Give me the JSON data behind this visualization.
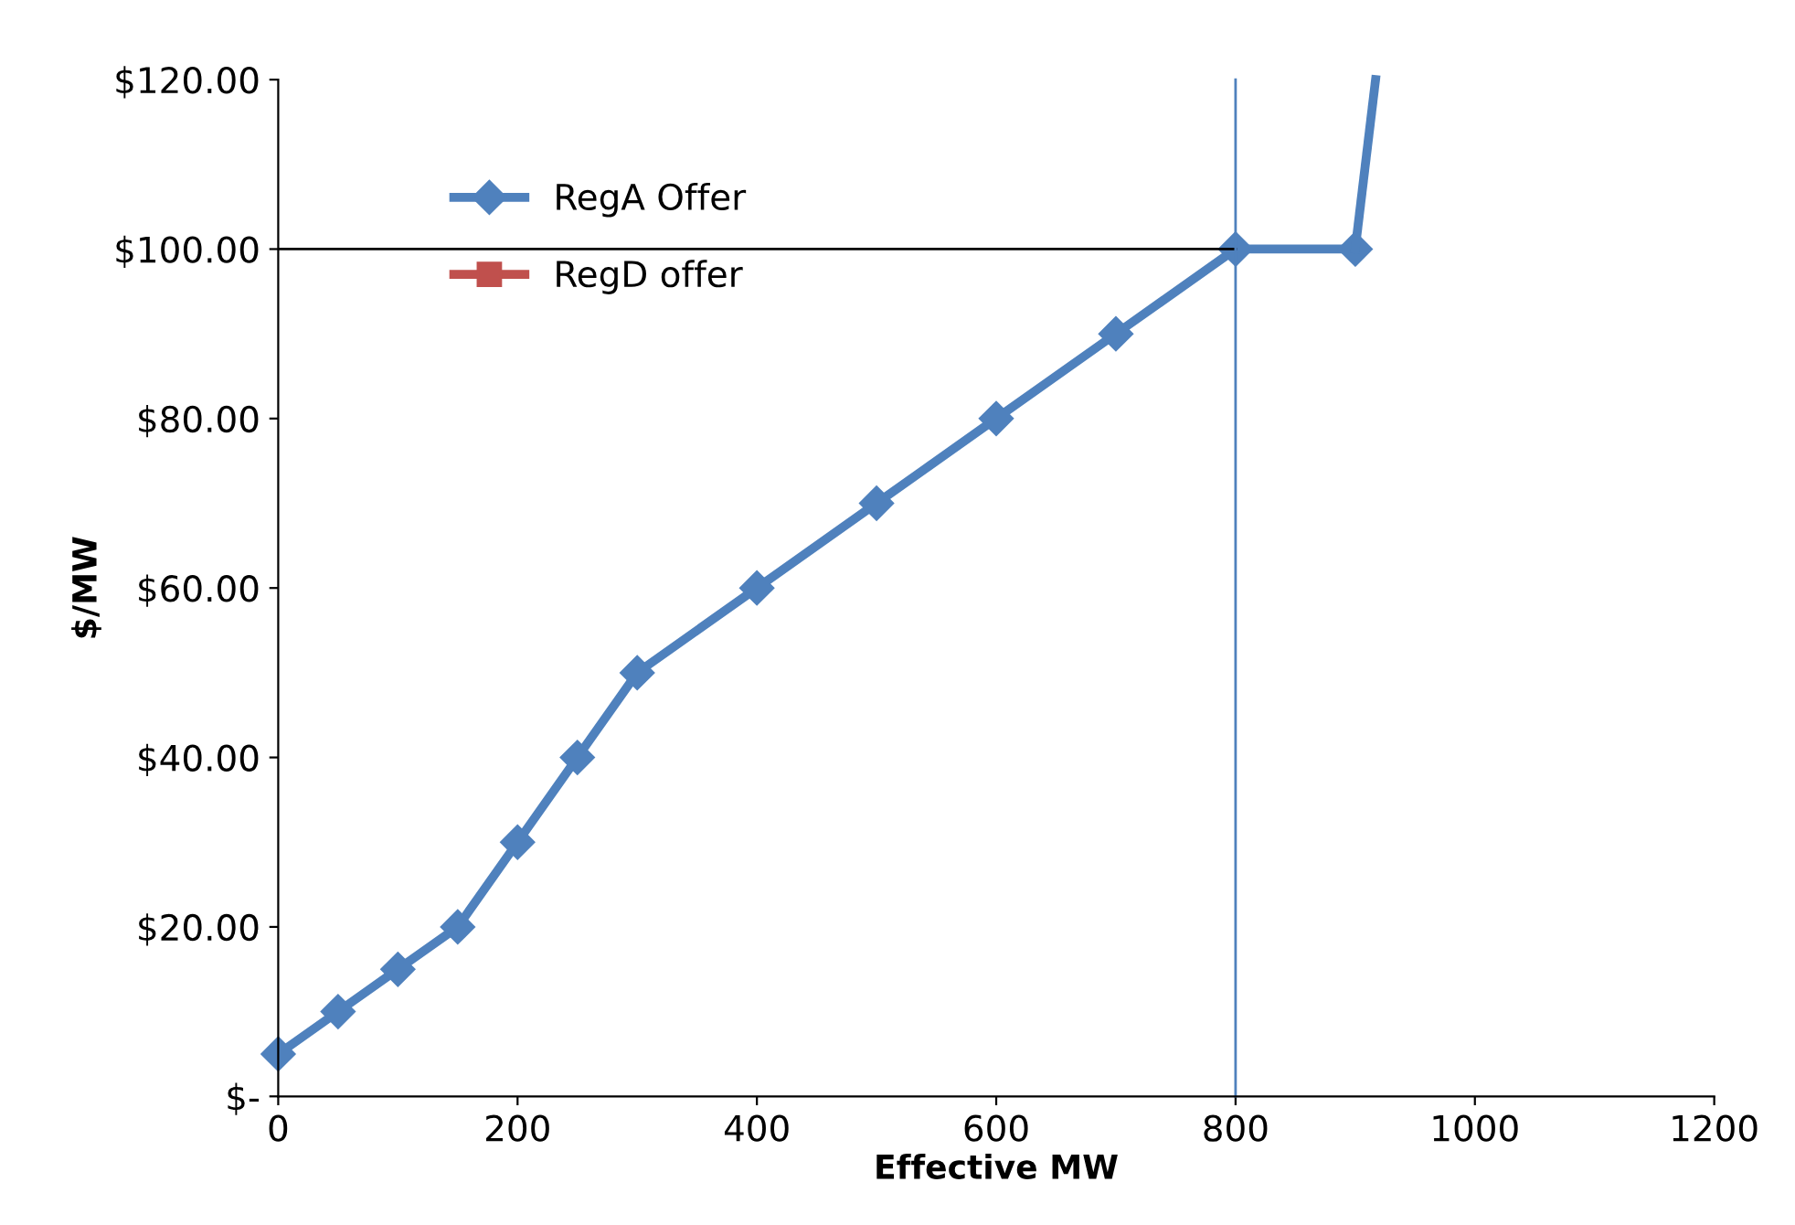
{
  "chart_data": {
    "type": "line",
    "xlabel": "Effective MW",
    "ylabel": "$/MW",
    "xlim": [
      0,
      1200
    ],
    "xticks": [
      0,
      200,
      400,
      600,
      800,
      1000,
      1200
    ],
    "ylim": [
      0,
      120
    ],
    "yticks": [
      {
        "value": 0,
        "label": "$-"
      },
      {
        "value": 20,
        "label": "$20.00"
      },
      {
        "value": 40,
        "label": "$40.00"
      },
      {
        "value": 60,
        "label": "$60.00"
      },
      {
        "value": 80,
        "label": "$80.00"
      },
      {
        "value": 100,
        "label": "$100.00"
      },
      {
        "value": 120,
        "label": "$120.00"
      }
    ],
    "grid": false,
    "legend": "top left",
    "series": [
      {
        "name": "RegA Offer",
        "color": "#4f81bd",
        "marker": "diamond",
        "x": [
          0,
          50,
          100,
          150,
          200,
          250,
          300,
          400,
          500,
          600,
          700,
          800,
          900
        ],
        "values": [
          5,
          10,
          15,
          20,
          30,
          40,
          50,
          60,
          70,
          80,
          90,
          100,
          100
        ]
      },
      {
        "name": "RegD offer",
        "color": "#c0504d",
        "marker": "square"
      },
      {
        "color": "#4f81bd",
        "marker": "none",
        "x": [
          900,
          917
        ],
        "values": [
          100,
          120
        ]
      }
    ],
    "ref_lines": [
      {
        "axis": "y",
        "value": 100,
        "color": "#000000"
      },
      {
        "axis": "x",
        "value": 800,
        "color": "#4f81bd"
      }
    ]
  }
}
